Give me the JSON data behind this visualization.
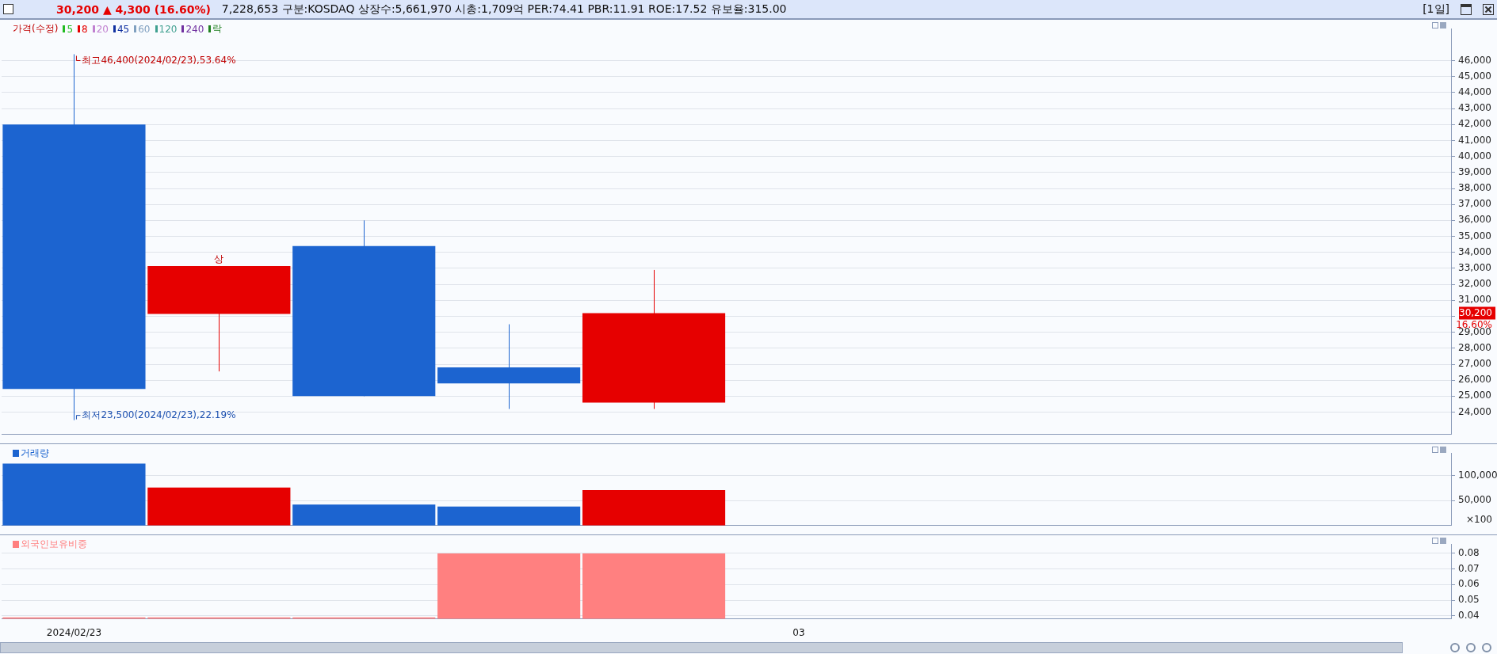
{
  "chart_data": [
    {
      "type": "candlestick",
      "title": "30,200 ▲ 4,300 (16.60%)",
      "subtitle": "7,228,653 구분:KOSDAQ 상장수:5,661,970 시총:1,709억 PER:74.41 PBR:11.91 ROE:17.52 유보율:315.00",
      "legend_title": "가격(수정)",
      "categories": [
        "2024/02/23",
        null,
        null,
        null,
        null,
        "03",
        null,
        null,
        null,
        null
      ],
      "ohlc": [
        [
          42000,
          46400,
          23500,
          25450
        ],
        [
          30150,
          33150,
          26550,
          33150
        ],
        [
          34400,
          36000,
          25000,
          25000
        ],
        [
          26800,
          29500,
          24200,
          25800
        ],
        [
          24600,
          32900,
          24200,
          30200
        ],
        null,
        null,
        null,
        null,
        null
      ],
      "colors": [
        "#1c64d0",
        "#e60000",
        "#1c64d0",
        "#1c64d0",
        "#e60000",
        null,
        null,
        null,
        null,
        null
      ],
      "series": [
        {
          "name": "5",
          "type": "line",
          "color": "#22bb22",
          "values": [
            null,
            null,
            null,
            null,
            null,
            null,
            null,
            null,
            null,
            null
          ]
        },
        {
          "name": "8",
          "type": "line",
          "color": "#e60000",
          "values": [
            null,
            null,
            null,
            null,
            null,
            null,
            null,
            null,
            null,
            null
          ]
        },
        {
          "name": "20",
          "type": "line",
          "color": "#c080d0",
          "values": [
            null,
            null,
            null,
            null,
            null,
            null,
            null,
            null,
            null,
            null
          ]
        },
        {
          "name": "45",
          "type": "line",
          "color": "#1030a0",
          "values": [
            null,
            null,
            null,
            null,
            null,
            null,
            null,
            null,
            null,
            null
          ]
        },
        {
          "name": "60",
          "type": "line",
          "color": "#80a0c0",
          "values": [
            null,
            null,
            null,
            null,
            null,
            null,
            null,
            null,
            null,
            null
          ]
        },
        {
          "name": "120",
          "type": "line",
          "color": "#40a090",
          "values": [
            null,
            null,
            null,
            null,
            null,
            null,
            null,
            null,
            null,
            null
          ]
        },
        {
          "name": "240",
          "type": "line",
          "color": "#7030a0",
          "values": [
            null,
            null,
            null,
            null,
            null,
            null,
            null,
            null,
            null,
            null
          ]
        },
        {
          "name": "락",
          "type": "line",
          "color": "#208020",
          "values": [
            null,
            null,
            null,
            null,
            null,
            null,
            null,
            null,
            null,
            null
          ]
        }
      ],
      "ylim": [
        22600,
        48000
      ],
      "yticks": [
        {
          "value": 24000,
          "label": "24,000"
        },
        {
          "value": 25000,
          "label": "25,000"
        },
        {
          "value": 26000,
          "label": "26,000"
        },
        {
          "value": 27000,
          "label": "27,000"
        },
        {
          "value": 28000,
          "label": "28,000"
        },
        {
          "value": 29000,
          "label": "29,000"
        },
        {
          "value": 30000,
          "label": null
        },
        {
          "value": 31000,
          "label": "31,000"
        },
        {
          "value": 32000,
          "label": "32,000"
        },
        {
          "value": 33000,
          "label": "33,000"
        },
        {
          "value": 34000,
          "label": "34,000"
        },
        {
          "value": 35000,
          "label": "35,000"
        },
        {
          "value": 36000,
          "label": "36,000"
        },
        {
          "value": 37000,
          "label": "37,000"
        },
        {
          "value": 38000,
          "label": "38,000"
        },
        {
          "value": 39000,
          "label": "39,000"
        },
        {
          "value": 40000,
          "label": "40,000"
        },
        {
          "value": 41000,
          "label": "41,000"
        },
        {
          "value": 42000,
          "label": "42,000"
        },
        {
          "value": 43000,
          "label": "43,000"
        },
        {
          "value": 44000,
          "label": "44,000"
        },
        {
          "value": 45000,
          "label": "45,000"
        },
        {
          "value": 46000,
          "label": "46,000"
        }
      ],
      "grid": "y",
      "legend": "top left",
      "tick_labels": "y",
      "annotations": [
        "[1일]",
        {
          "text": "최고46,400(2024/02/23),53.64%",
          "x": "2024/02/23",
          "y": 46400
        },
        {
          "text": "최저23,500(2024/02/23),22.19%",
          "x": "2024/02/23",
          "y": 23500
        },
        {
          "text": "상",
          "y": 33150
        },
        "30,200",
        "16.60%"
      ]
    },
    {
      "type": "bar",
      "ylabel": "×100",
      "categories": [
        "2024/02/23",
        null,
        null,
        null,
        null,
        "03",
        null,
        null,
        null,
        null
      ],
      "series": [
        {
          "name": "거래량",
          "colors": [
            "#1c64d0",
            "#e60000",
            "#1c64d0",
            "#1c64d0",
            "#e60000",
            null,
            null,
            null,
            null,
            null
          ],
          "values": [
            124000,
            76000,
            42000,
            38000,
            71000,
            null,
            null,
            null,
            null,
            null
          ]
        }
      ],
      "ylim": [
        0,
        145000
      ],
      "yticks": [
        {
          "value": 50000,
          "label": "50,000"
        },
        {
          "value": 100000,
          "label": "100,000"
        }
      ],
      "grid": "y",
      "legend": "top left",
      "tick_labels": "y"
    },
    {
      "type": "bar",
      "categories": [
        "2024/02/23",
        null,
        null,
        null,
        null,
        "03",
        null,
        null,
        null,
        null
      ],
      "series": [
        {
          "name": "외국인보유비중",
          "color": "#ff8080",
          "values": [
            0.039,
            0.039,
            0.039,
            0.08,
            0.08,
            null,
            null,
            null,
            null,
            null
          ]
        }
      ],
      "ylim": [
        0.038,
        0.086
      ],
      "yticks": [
        0.04,
        0.05,
        0.06,
        0.07,
        0.08
      ],
      "grid": "y",
      "legend": "top left"
    }
  ]
}
